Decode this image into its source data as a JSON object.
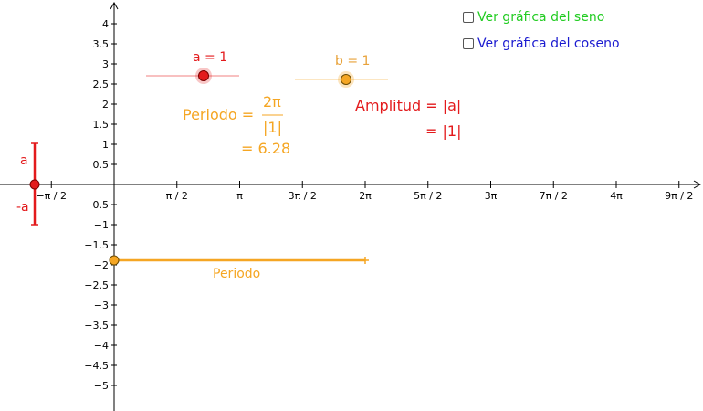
{
  "colors": {
    "red": "#e31a1c",
    "orange": "#f5a623",
    "orange_dark": "#e8a23a",
    "green": "#22cc22",
    "blue": "#1b1bd0",
    "axis": "#000000"
  },
  "checkboxes": {
    "seno": {
      "label": "Ver gráfica del seno",
      "checked": false
    },
    "coseno": {
      "label": "Ver gráfica del coseno",
      "checked": false
    }
  },
  "sliders": {
    "a": {
      "label": "a = 1",
      "value": 1
    },
    "b": {
      "label": "b = 1",
      "value": 1
    }
  },
  "formulas": {
    "period_label": "Periodo =",
    "period_num": "2π",
    "period_den": "|1|",
    "period_value": "= 6.28",
    "amplitude_label": "Amplitud = |a|",
    "amplitude_value": "= |1|"
  },
  "segments": {
    "amplitude_top": "a",
    "amplitude_bottom": "-a",
    "period": "Periodo"
  },
  "axes": {
    "x_ticks": [
      {
        "label": "−π / 2",
        "value": -1.5708
      },
      {
        "label": "π / 2",
        "value": 1.5708
      },
      {
        "label": "π",
        "value": 3.1416
      },
      {
        "label": "3π / 2",
        "value": 4.7124
      },
      {
        "label": "2π",
        "value": 6.2832
      },
      {
        "label": "5π / 2",
        "value": 7.854
      },
      {
        "label": "3π",
        "value": 9.4248
      },
      {
        "label": "7π / 2",
        "value": 10.9956
      },
      {
        "label": "4π",
        "value": 12.5664
      },
      {
        "label": "9π / 2",
        "value": 14.1372
      }
    ],
    "y_ticks": [
      {
        "label": "4",
        "value": 4
      },
      {
        "label": "3.5",
        "value": 3.5
      },
      {
        "label": "3",
        "value": 3
      },
      {
        "label": "2.5",
        "value": 2.5
      },
      {
        "label": "2",
        "value": 2
      },
      {
        "label": "1.5",
        "value": 1.5
      },
      {
        "label": "1",
        "value": 1
      },
      {
        "label": "0.5",
        "value": 0.5
      },
      {
        "label": "−0.5",
        "value": -0.5
      },
      {
        "label": "−1",
        "value": -1
      },
      {
        "label": "−1.5",
        "value": -1.5
      },
      {
        "label": "−2",
        "value": -2
      },
      {
        "label": "−2.5",
        "value": -2.5
      },
      {
        "label": "−3",
        "value": -3
      },
      {
        "label": "−3.5",
        "value": -3.5
      },
      {
        "label": "−4",
        "value": -4
      },
      {
        "label": "−4.5",
        "value": -4.5
      },
      {
        "label": "−5",
        "value": -5
      }
    ]
  }
}
